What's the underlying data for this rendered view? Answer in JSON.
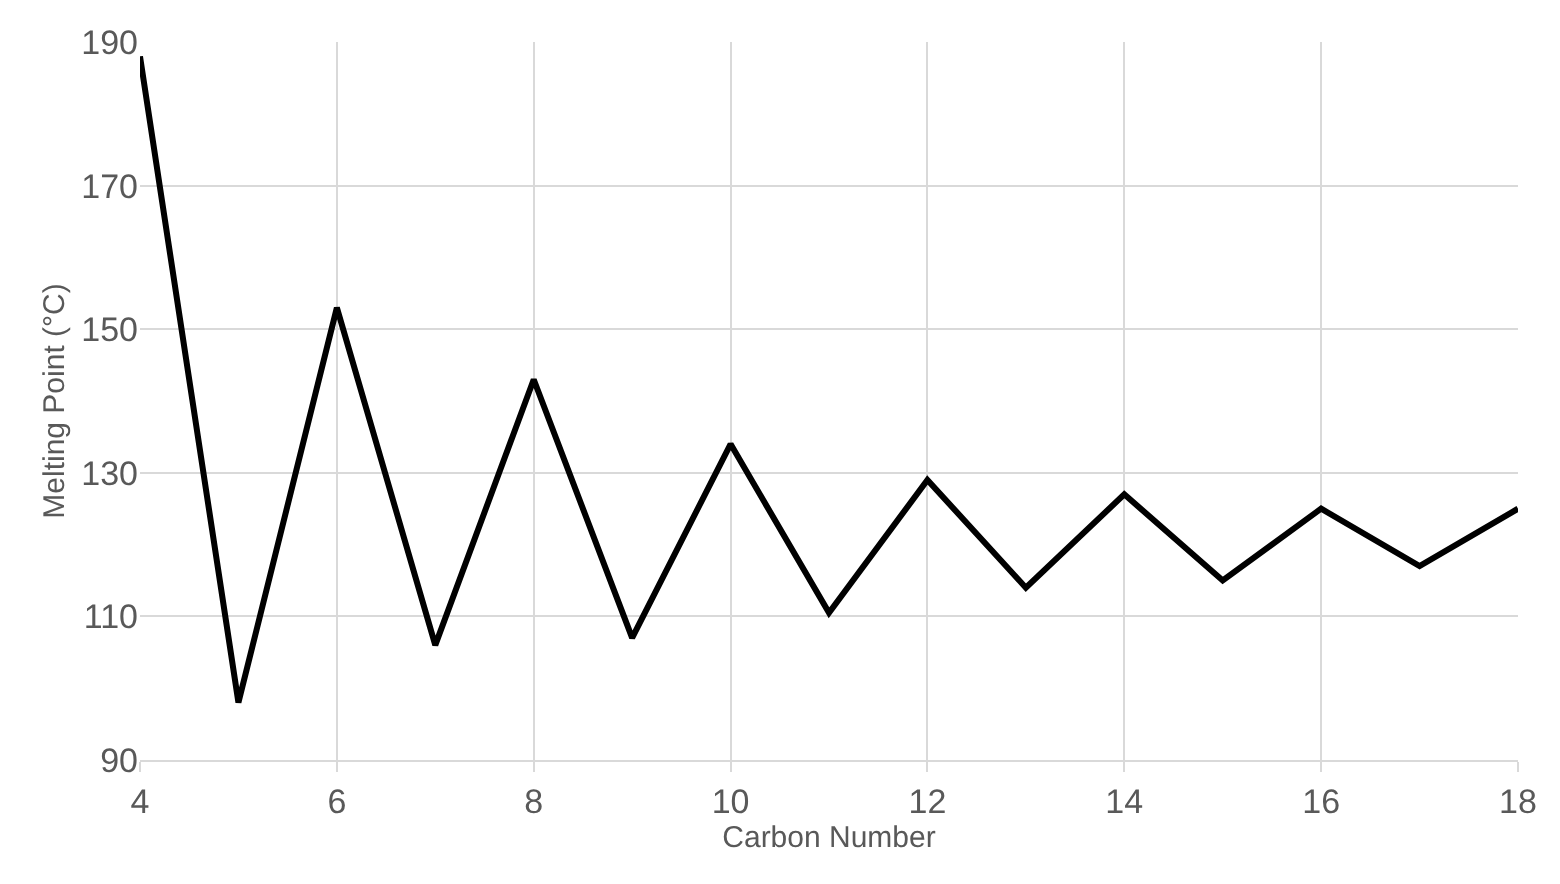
{
  "chart_data": {
    "type": "line",
    "xlabel": "Carbon Number",
    "ylabel": "Melting Point (°C)",
    "x": [
      4,
      5,
      6,
      7,
      8,
      9,
      10,
      11,
      12,
      13,
      14,
      15,
      16,
      17,
      18
    ],
    "series": [
      {
        "color": "#000000",
        "values": [
          188,
          98,
          153,
          106,
          143,
          107,
          134,
          110.5,
          129,
          114,
          127,
          115,
          125,
          117,
          125
        ]
      }
    ],
    "xlim": [
      4,
      18
    ],
    "xticks": [
      4,
      6,
      8,
      10,
      12,
      14,
      16,
      18
    ],
    "ylim": [
      90,
      190
    ],
    "yticks": [
      90,
      110,
      130,
      150,
      170,
      190
    ],
    "grid": true,
    "marker": "none",
    "line_style": "solid"
  }
}
